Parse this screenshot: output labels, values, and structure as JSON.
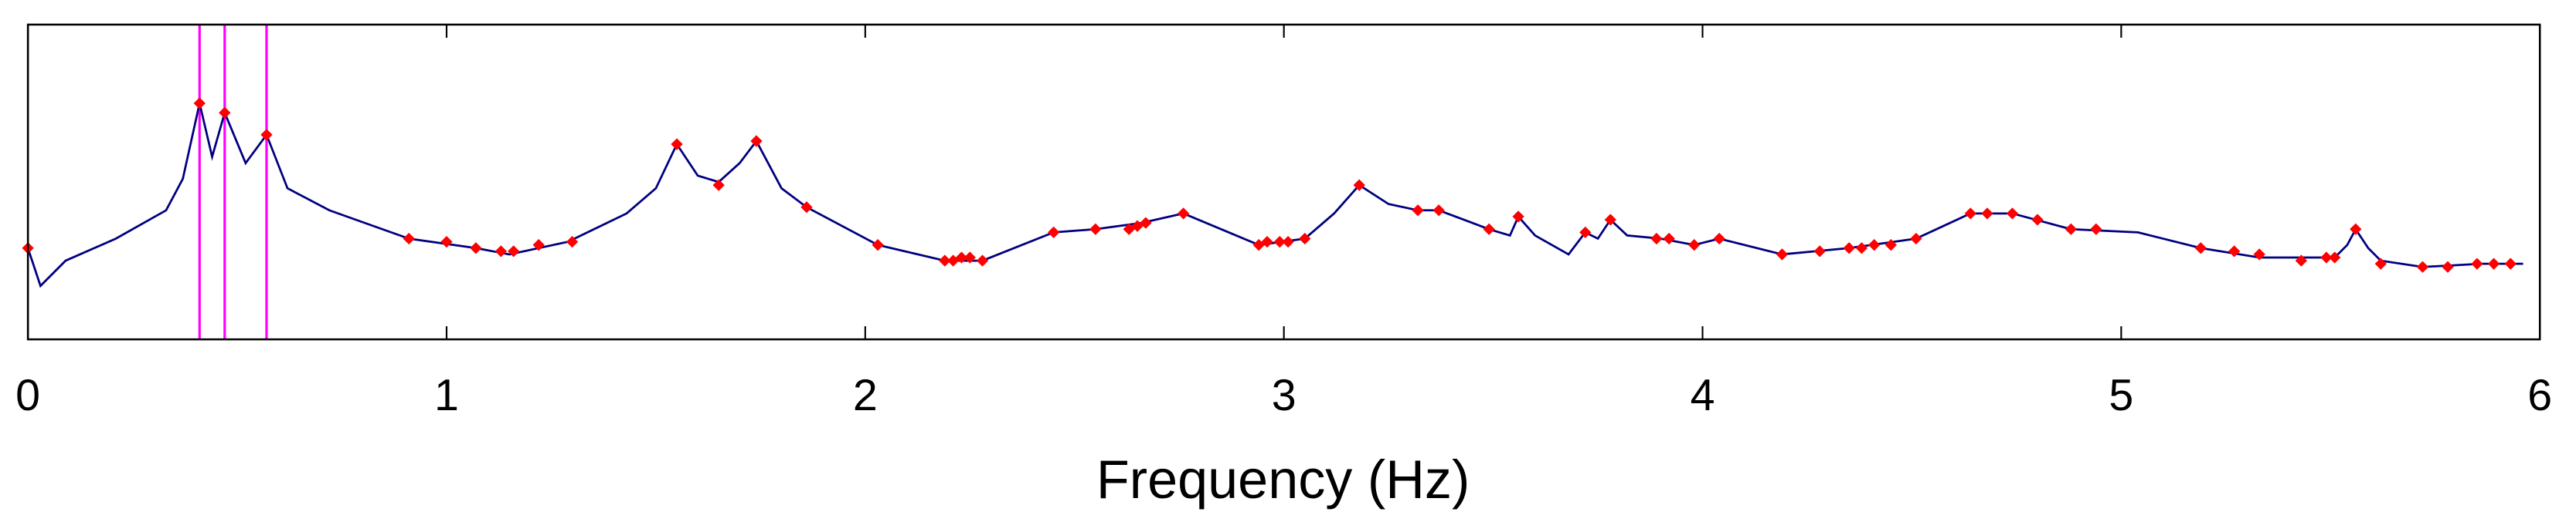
{
  "chart_data": {
    "type": "line",
    "x_label": "Frequency (Hz)",
    "xlim": [
      0,
      6
    ],
    "xticks": [
      0,
      1,
      2,
      3,
      4,
      5,
      6
    ],
    "ylim": [
      0,
      1
    ],
    "x": [
      0,
      0.03,
      0.09,
      0.21,
      0.33,
      0.37,
      0.41,
      0.44,
      0.47,
      0.52,
      0.57,
      0.62,
      0.72,
      0.91,
      1.07,
      1.15,
      1.29,
      1.43,
      1.5,
      1.55,
      1.6,
      1.65,
      1.7,
      1.74,
      1.8,
      1.86,
      2.03,
      2.19,
      2.28,
      2.45,
      2.55,
      2.66,
      2.76,
      2.94,
      3.05,
      3.12,
      3.18,
      3.25,
      3.32,
      3.37,
      3.49,
      3.54,
      3.56,
      3.6,
      3.68,
      3.72,
      3.75,
      3.78,
      3.82,
      3.9,
      3.98,
      4.04,
      4.19,
      4.35,
      4.51,
      4.64,
      4.74,
      4.88,
      5.04,
      5.19,
      5.33,
      5.51,
      5.54,
      5.56,
      5.59,
      5.62,
      5.72,
      5.86,
      5.96
    ],
    "series": [
      {
        "color": "#000080",
        "values": [
          0.29,
          0.17,
          0.25,
          0.32,
          0.41,
          0.51,
          0.75,
          0.58,
          0.72,
          0.56,
          0.65,
          0.48,
          0.41,
          0.32,
          0.29,
          0.27,
          0.31,
          0.4,
          0.48,
          0.62,
          0.52,
          0.5,
          0.56,
          0.63,
          0.48,
          0.42,
          0.3,
          0.25,
          0.25,
          0.34,
          0.35,
          0.37,
          0.4,
          0.3,
          0.32,
          0.4,
          0.49,
          0.43,
          0.41,
          0.41,
          0.35,
          0.33,
          0.39,
          0.33,
          0.27,
          0.34,
          0.32,
          0.38,
          0.33,
          0.32,
          0.3,
          0.32,
          0.27,
          0.29,
          0.32,
          0.4,
          0.4,
          0.35,
          0.34,
          0.29,
          0.26,
          0.26,
          0.3,
          0.35,
          0.29,
          0.25,
          0.23,
          0.24,
          0.24
        ]
      }
    ],
    "markers": {
      "color": "#ff0000",
      "x": [
        0,
        0.41,
        0.47,
        0.57,
        0.91,
        1.0,
        1.07,
        1.13,
        1.16,
        1.22,
        1.3,
        1.55,
        1.65,
        1.74,
        1.86,
        2.03,
        2.19,
        2.21,
        2.23,
        2.25,
        2.28,
        2.45,
        2.55,
        2.63,
        2.65,
        2.67,
        2.76,
        2.94,
        2.96,
        2.99,
        3.01,
        3.05,
        3.18,
        3.32,
        3.37,
        3.49,
        3.56,
        3.72,
        3.78,
        3.89,
        3.92,
        3.98,
        4.04,
        4.19,
        4.28,
        4.35,
        4.38,
        4.41,
        4.45,
        4.51,
        4.64,
        4.68,
        4.74,
        4.8,
        4.88,
        4.94,
        5.19,
        5.27,
        5.33,
        5.43,
        5.49,
        5.51,
        5.56,
        5.62,
        5.72,
        5.78,
        5.85,
        5.89,
        5.93
      ],
      "values": [
        0.29,
        0.75,
        0.72,
        0.65,
        0.32,
        0.31,
        0.29,
        0.28,
        0.28,
        0.3,
        0.31,
        0.62,
        0.49,
        0.63,
        0.42,
        0.3,
        0.25,
        0.25,
        0.26,
        0.26,
        0.25,
        0.34,
        0.35,
        0.35,
        0.36,
        0.37,
        0.4,
        0.3,
        0.31,
        0.31,
        0.31,
        0.32,
        0.49,
        0.41,
        0.41,
        0.35,
        0.39,
        0.34,
        0.38,
        0.32,
        0.32,
        0.3,
        0.32,
        0.27,
        0.28,
        0.29,
        0.29,
        0.3,
        0.3,
        0.32,
        0.4,
        0.4,
        0.4,
        0.38,
        0.35,
        0.35,
        0.29,
        0.28,
        0.27,
        0.25,
        0.26,
        0.26,
        0.35,
        0.24,
        0.23,
        0.23,
        0.24,
        0.24,
        0.24
      ]
    },
    "vlines": {
      "color": "#ff00ff",
      "x": [
        0.41,
        0.47,
        0.57
      ]
    }
  }
}
